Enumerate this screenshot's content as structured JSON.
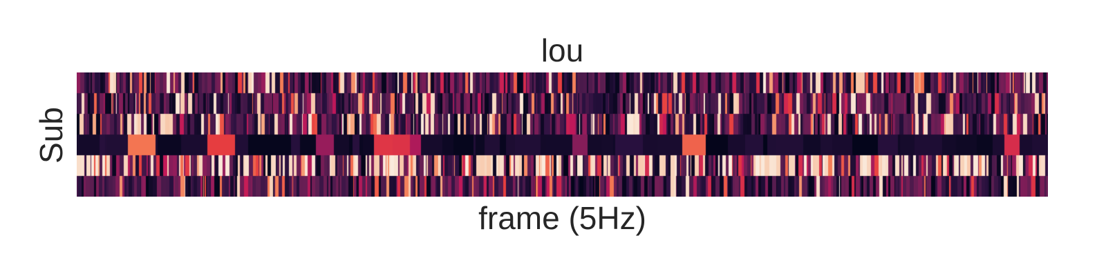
{
  "chart_data": {
    "type": "heatmap",
    "title": "lou",
    "xlabel": "frame (5Hz)",
    "ylabel": "Sub",
    "n_rows": 6,
    "n_cols": 1400,
    "colormap": "rocket",
    "colormap_stops": [
      "#03051a",
      "#2b1140",
      "#5b1e51",
      "#8e1d5b",
      "#c1185a",
      "#e83f3f",
      "#f47a54",
      "#f6b48e",
      "#faebdd"
    ],
    "x_tick_labels": [],
    "y_tick_labels": [],
    "grid": false,
    "colorbar": false,
    "rows": [
      {
        "mean_level": 0.35,
        "high_frequency": 0.12,
        "description_levels": [
          0.1,
          0.3,
          0.6,
          1.0
        ]
      },
      {
        "mean_level": 0.32,
        "high_frequency": 0.1,
        "description_levels": [
          0.1,
          0.3,
          0.6,
          1.0
        ]
      },
      {
        "mean_level": 0.38,
        "high_frequency": 0.16,
        "description_levels": [
          0.1,
          0.3,
          0.6,
          1.0
        ]
      },
      {
        "mean_level": 0.05,
        "high_frequency": 0.01,
        "description_levels": [
          0.0,
          0.1,
          0.3,
          1.0
        ]
      },
      {
        "mean_level": 0.55,
        "high_frequency": 0.4,
        "description_levels": [
          0.1,
          0.3,
          0.6,
          1.0
        ]
      },
      {
        "mean_level": 0.25,
        "high_frequency": 0.05,
        "description_levels": [
          0.1,
          0.3,
          0.6,
          1.0
        ]
      }
    ]
  }
}
